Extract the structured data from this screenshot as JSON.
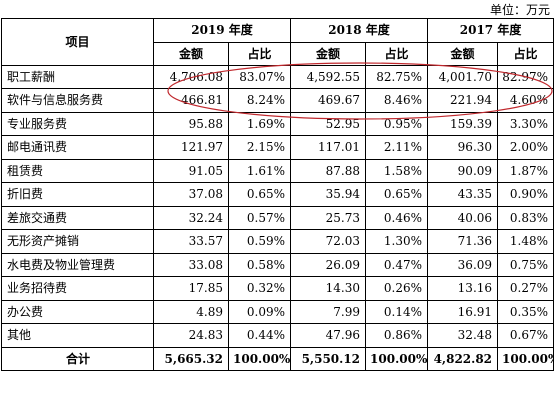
{
  "unit_label": "单位：万元",
  "header": {
    "item": "项目",
    "years": [
      "2019 年度",
      "2018 年度",
      "2017 年度"
    ],
    "amount": "金额",
    "ratio": "占比"
  },
  "rows": [
    {
      "name": "职工薪酬",
      "v": [
        "4,706.08",
        "83.07%",
        "4,592.55",
        "82.75%",
        "4,001.70",
        "82.97%"
      ]
    },
    {
      "name": "软件与信息服务费",
      "v": [
        "466.81",
        "8.24%",
        "469.67",
        "8.46%",
        "221.94",
        "4.60%"
      ]
    },
    {
      "name": "专业服务费",
      "v": [
        "95.88",
        "1.69%",
        "52.95",
        "0.95%",
        "159.39",
        "3.30%"
      ]
    },
    {
      "name": "邮电通讯费",
      "v": [
        "121.97",
        "2.15%",
        "117.01",
        "2.11%",
        "96.30",
        "2.00%"
      ]
    },
    {
      "name": "租赁费",
      "v": [
        "91.05",
        "1.61%",
        "87.88",
        "1.58%",
        "90.09",
        "1.87%"
      ]
    },
    {
      "name": "折旧费",
      "v": [
        "37.08",
        "0.65%",
        "35.94",
        "0.65%",
        "43.35",
        "0.90%"
      ]
    },
    {
      "name": "差旅交通费",
      "v": [
        "32.24",
        "0.57%",
        "25.73",
        "0.46%",
        "40.06",
        "0.83%"
      ]
    },
    {
      "name": "无形资产摊销",
      "v": [
        "33.57",
        "0.59%",
        "72.03",
        "1.30%",
        "71.36",
        "1.48%"
      ]
    },
    {
      "name": "水电费及物业管理费",
      "v": [
        "33.08",
        "0.58%",
        "26.09",
        "0.47%",
        "36.09",
        "0.75%"
      ]
    },
    {
      "name": "业务招待费",
      "v": [
        "17.85",
        "0.32%",
        "14.30",
        "0.26%",
        "13.16",
        "0.27%"
      ]
    },
    {
      "name": "办公费",
      "v": [
        "4.89",
        "0.09%",
        "7.99",
        "0.14%",
        "16.91",
        "0.35%"
      ]
    },
    {
      "name": "其他",
      "v": [
        "24.83",
        "0.44%",
        "47.96",
        "0.86%",
        "32.48",
        "0.67%"
      ]
    }
  ],
  "total": {
    "name": "合计",
    "v": [
      "5,665.32",
      "100.00%",
      "5,550.12",
      "100.00%",
      "4,822.82",
      "100.00%"
    ]
  },
  "annotation_color": "#c0282d"
}
